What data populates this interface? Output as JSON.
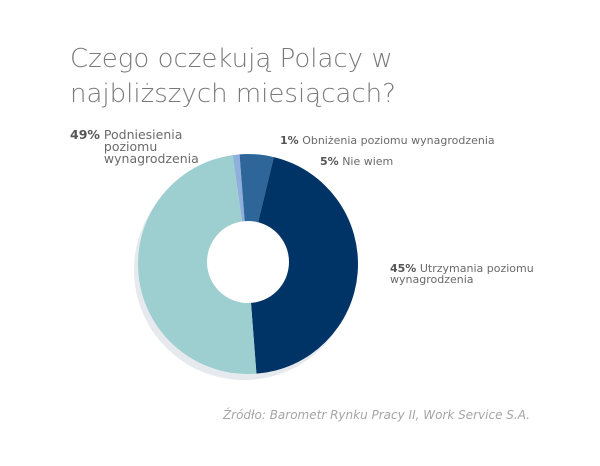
{
  "chart_data": {
    "type": "pie",
    "variant": "donut",
    "title": "Czego oczekują Polacy w najbliższych miesiącach?",
    "slices": [
      {
        "label": "Obniżenia poziomu wynagrodzenia",
        "pct_label": "1%",
        "value": 1,
        "color": "#8fb0dd"
      },
      {
        "label": "Nie wiem",
        "pct_label": "5%",
        "value": 5,
        "color": "#2f6699"
      },
      {
        "label": "Utrzymania poziomu wynagrodzenia",
        "pct_label": "45%",
        "value": 45,
        "color": "#003366"
      },
      {
        "label": "Podniesienia poziomu wynagrodzenia",
        "pct_label": "49%",
        "value": 49,
        "color": "#9dcfd0"
      }
    ],
    "source": "Źródło: Barometr Rynku Pracy II, Work Service S.A."
  }
}
